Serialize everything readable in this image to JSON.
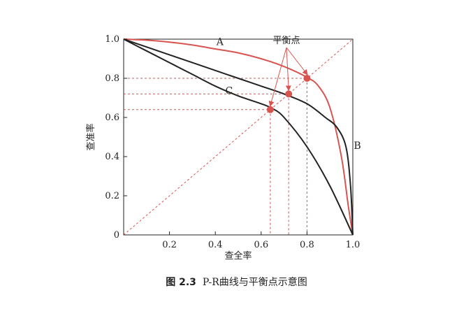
{
  "chart_data": {
    "type": "line",
    "xlabel": "查全率",
    "ylabel": "查准率",
    "xlim": [
      0,
      1
    ],
    "ylim": [
      0,
      1
    ],
    "x_ticks": [
      "0.2",
      "0.4",
      "0.6",
      "0.8",
      "1.0"
    ],
    "y_ticks": [
      "0",
      "0.2",
      "0.4",
      "0.6",
      "0.8",
      "1.0"
    ],
    "grid": false,
    "series": [
      {
        "name": "A",
        "color": "#d9534f",
        "points": [
          [
            0,
            1.0
          ],
          [
            0.1,
            0.995
          ],
          [
            0.2,
            0.985
          ],
          [
            0.3,
            0.97
          ],
          [
            0.4,
            0.95
          ],
          [
            0.5,
            0.93
          ],
          [
            0.6,
            0.9
          ],
          [
            0.7,
            0.86
          ],
          [
            0.8,
            0.805
          ],
          [
            0.85,
            0.76
          ],
          [
            0.9,
            0.65
          ],
          [
            0.95,
            0.4
          ],
          [
            0.98,
            0.15
          ],
          [
            1.0,
            0.0
          ]
        ]
      },
      {
        "name": "B",
        "color": "#222222",
        "points": [
          [
            0,
            1.0
          ],
          [
            0.1,
            0.96
          ],
          [
            0.2,
            0.92
          ],
          [
            0.3,
            0.88
          ],
          [
            0.4,
            0.84
          ],
          [
            0.5,
            0.8
          ],
          [
            0.6,
            0.76
          ],
          [
            0.7,
            0.72
          ],
          [
            0.8,
            0.67
          ],
          [
            0.88,
            0.6
          ],
          [
            0.93,
            0.55
          ],
          [
            0.97,
            0.45
          ],
          [
            0.99,
            0.25
          ],
          [
            1.0,
            0.0
          ]
        ]
      },
      {
        "name": "C",
        "color": "#222222",
        "points": [
          [
            0,
            1.0
          ],
          [
            0.1,
            0.94
          ],
          [
            0.2,
            0.88
          ],
          [
            0.3,
            0.82
          ],
          [
            0.4,
            0.76
          ],
          [
            0.5,
            0.71
          ],
          [
            0.6,
            0.67
          ],
          [
            0.65,
            0.645
          ],
          [
            0.7,
            0.6
          ],
          [
            0.8,
            0.45
          ],
          [
            0.9,
            0.25
          ],
          [
            1.0,
            0.0
          ]
        ]
      }
    ],
    "diagonal": {
      "color": "#d9534f",
      "from": [
        0,
        0
      ],
      "to": [
        1,
        1
      ]
    },
    "break_even_points": [
      {
        "curve": "A",
        "x": 0.8,
        "y": 0.8
      },
      {
        "curve": "B",
        "x": 0.72,
        "y": 0.72
      },
      {
        "curve": "C",
        "x": 0.64,
        "y": 0.64
      }
    ],
    "annotation": "平衡点"
  },
  "caption": {
    "figure_number": "图 2.3",
    "text": "P-R曲线与平衡点示意图"
  }
}
